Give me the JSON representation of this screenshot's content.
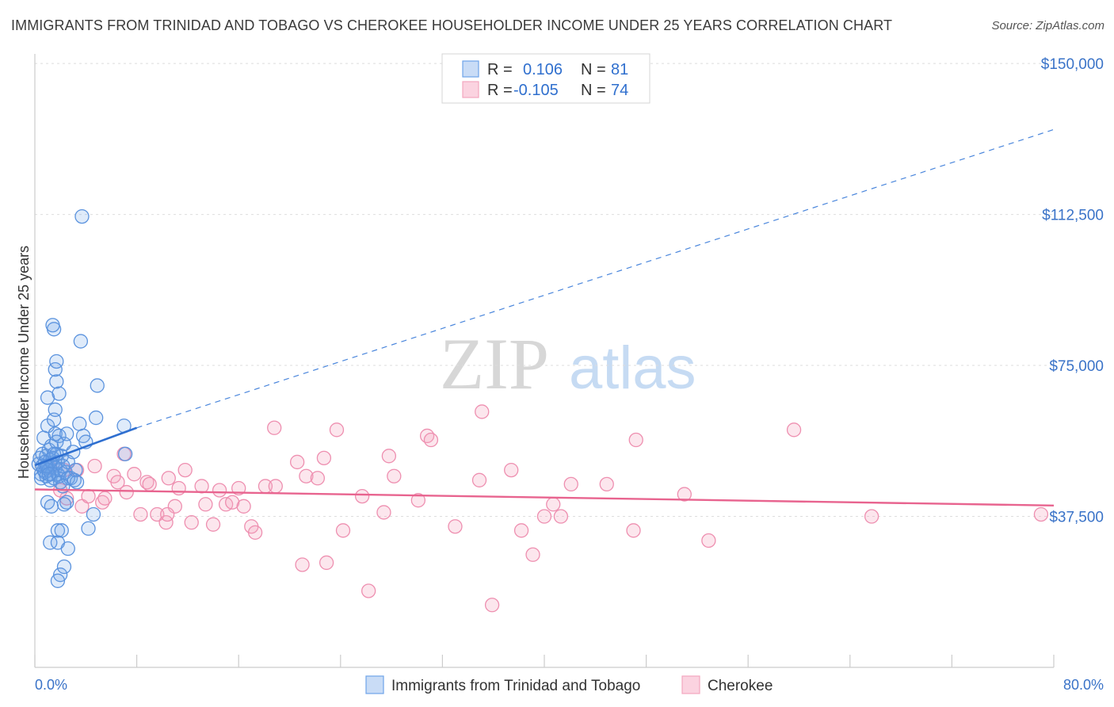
{
  "header": {
    "title": "IMMIGRANTS FROM TRINIDAD AND TOBAGO VS CHEROKEE HOUSEHOLDER INCOME UNDER 25 YEARS CORRELATION CHART",
    "source": "Source: ZipAtlas.com"
  },
  "watermark": {
    "zip": "ZIP",
    "atlas": "atlas"
  },
  "stats": [
    {
      "r_label": "R =",
      "r_value": "0.106",
      "n_label": "N =",
      "n_value": "81",
      "color": "#6fa3e8"
    },
    {
      "r_label": "R =",
      "r_value": "-0.105",
      "n_label": "N =",
      "n_value": "74",
      "color": "#f4a6bf"
    }
  ],
  "chart_data": {
    "type": "scatter",
    "title": "IMMIGRANTS FROM TRINIDAD AND TOBAGO VS CHEROKEE HOUSEHOLDER INCOME UNDER 25 YEARS CORRELATION CHART",
    "xlabel": "",
    "ylabel": "Householder Income Under 25 years",
    "xlim": [
      0,
      80
    ],
    "ylim": [
      0,
      157500
    ],
    "x_tick_labels": [
      "0.0%",
      "80.0%"
    ],
    "y_ticks": [
      37500,
      75000,
      112500,
      150000
    ],
    "y_tick_labels": [
      "$37,500",
      "$75,000",
      "$112,500",
      "$150,000"
    ],
    "grid": true,
    "legend": "bottom-center",
    "series": [
      {
        "name": "Immigrants from Trinidad and Tobago",
        "color": "#6fa3e8",
        "trend": {
          "x": [
            0,
            8
          ],
          "y": [
            50200,
            59500
          ],
          "dashed_to": [
            80,
            133600
          ]
        },
        "points": [
          [
            0.3,
            50500
          ],
          [
            0.4,
            52000
          ],
          [
            0.5,
            48000
          ],
          [
            0.5,
            47000
          ],
          [
            0.6,
            53000
          ],
          [
            0.6,
            50000
          ],
          [
            0.7,
            49000
          ],
          [
            0.7,
            57000
          ],
          [
            0.8,
            51000
          ],
          [
            0.8,
            48500
          ],
          [
            0.9,
            47500
          ],
          [
            0.9,
            52500
          ],
          [
            1.0,
            50000
          ],
          [
            1.0,
            60000
          ],
          [
            1.1,
            49000
          ],
          [
            1.1,
            54000
          ],
          [
            1.2,
            51500
          ],
          [
            1.2,
            46500
          ],
          [
            1.3,
            48000
          ],
          [
            1.3,
            55000
          ],
          [
            1.4,
            50500
          ],
          [
            1.4,
            52000
          ],
          [
            1.5,
            61500
          ],
          [
            1.5,
            47000
          ],
          [
            1.6,
            58000
          ],
          [
            1.6,
            49500
          ],
          [
            1.7,
            56000
          ],
          [
            1.7,
            53000
          ],
          [
            1.8,
            48000
          ],
          [
            1.8,
            51000
          ],
          [
            1.9,
            47500
          ],
          [
            1.9,
            57500
          ],
          [
            2.0,
            49000
          ],
          [
            2.0,
            46000
          ],
          [
            2.1,
            52500
          ],
          [
            2.2,
            50000
          ],
          [
            2.3,
            55500
          ],
          [
            2.4,
            48500
          ],
          [
            2.5,
            58000
          ],
          [
            2.6,
            51000
          ],
          [
            2.8,
            47000
          ],
          [
            3.0,
            53500
          ],
          [
            3.2,
            49000
          ],
          [
            3.5,
            60500
          ],
          [
            3.8,
            57500
          ],
          [
            4.0,
            56000
          ],
          [
            1.0,
            67000
          ],
          [
            1.5,
            84000
          ],
          [
            1.4,
            85000
          ],
          [
            1.6,
            64000
          ],
          [
            1.6,
            74000
          ],
          [
            1.7,
            71000
          ],
          [
            1.7,
            76000
          ],
          [
            1.9,
            68000
          ],
          [
            3.6,
            81000
          ],
          [
            4.9,
            70000
          ],
          [
            4.8,
            62000
          ],
          [
            7.0,
            60000
          ],
          [
            7.1,
            53000
          ],
          [
            3.7,
            112000
          ],
          [
            1.0,
            41000
          ],
          [
            1.3,
            40000
          ],
          [
            1.8,
            34000
          ],
          [
            1.2,
            31000
          ],
          [
            1.8,
            31000
          ],
          [
            2.0,
            23000
          ],
          [
            1.8,
            21500
          ],
          [
            2.1,
            34000
          ],
          [
            2.3,
            25000
          ],
          [
            2.6,
            29500
          ],
          [
            4.2,
            34500
          ],
          [
            4.6,
            38000
          ],
          [
            2.5,
            41000
          ],
          [
            2.3,
            40500
          ],
          [
            2.6,
            47000
          ],
          [
            3.1,
            46500
          ],
          [
            3.3,
            46000
          ],
          [
            0.9,
            50000
          ],
          [
            1.1,
            48000
          ],
          [
            2.2,
            45000
          ],
          [
            1.5,
            53000
          ]
        ]
      },
      {
        "name": "Cherokee",
        "color": "#f4a6bf",
        "trend": {
          "x": [
            0,
            80
          ],
          "y": [
            44200,
            40200
          ]
        },
        "points": [
          [
            1.2,
            49500
          ],
          [
            2.3,
            49000
          ],
          [
            3.3,
            49000
          ],
          [
            2.5,
            42000
          ],
          [
            3.7,
            40000
          ],
          [
            4.2,
            42500
          ],
          [
            5.3,
            41000
          ],
          [
            5.5,
            42000
          ],
          [
            6.2,
            47500
          ],
          [
            7.0,
            53000
          ],
          [
            7.2,
            43500
          ],
          [
            7.8,
            48000
          ],
          [
            8.3,
            38000
          ],
          [
            8.8,
            46000
          ],
          [
            9.0,
            45500
          ],
          [
            9.6,
            38000
          ],
          [
            10.3,
            36000
          ],
          [
            10.5,
            47000
          ],
          [
            11.0,
            40000
          ],
          [
            11.3,
            44500
          ],
          [
            11.8,
            49000
          ],
          [
            12.3,
            36000
          ],
          [
            13.1,
            45000
          ],
          [
            13.4,
            40500
          ],
          [
            14.0,
            35500
          ],
          [
            14.5,
            44000
          ],
          [
            15.0,
            40500
          ],
          [
            15.5,
            41000
          ],
          [
            16.0,
            44500
          ],
          [
            16.4,
            40000
          ],
          [
            17.0,
            35000
          ],
          [
            17.3,
            33500
          ],
          [
            18.1,
            45000
          ],
          [
            18.9,
            45000
          ],
          [
            18.8,
            59500
          ],
          [
            20.6,
            51000
          ],
          [
            21.0,
            25500
          ],
          [
            21.3,
            47500
          ],
          [
            22.2,
            47000
          ],
          [
            22.7,
            52000
          ],
          [
            22.9,
            26000
          ],
          [
            23.7,
            59000
          ],
          [
            24.2,
            34000
          ],
          [
            25.7,
            42500
          ],
          [
            26.2,
            19000
          ],
          [
            27.4,
            38500
          ],
          [
            27.8,
            52500
          ],
          [
            28.2,
            47500
          ],
          [
            30.1,
            41500
          ],
          [
            30.8,
            57500
          ],
          [
            31.1,
            56500
          ],
          [
            33.0,
            35000
          ],
          [
            34.9,
            46500
          ],
          [
            35.9,
            15500
          ],
          [
            35.1,
            63500
          ],
          [
            37.4,
            49000
          ],
          [
            38.2,
            34000
          ],
          [
            39.1,
            28000
          ],
          [
            40.0,
            37500
          ],
          [
            40.7,
            40500
          ],
          [
            41.3,
            37500
          ],
          [
            42.1,
            45500
          ],
          [
            44.9,
            45500
          ],
          [
            47.0,
            34000
          ],
          [
            47.2,
            56500
          ],
          [
            51.0,
            43000
          ],
          [
            52.9,
            31500
          ],
          [
            59.6,
            59000
          ],
          [
            65.7,
            37500
          ],
          [
            79.0,
            38000
          ],
          [
            10.4,
            38000
          ],
          [
            4.7,
            50000
          ],
          [
            2.0,
            44000
          ],
          [
            6.5,
            46000
          ]
        ]
      }
    ]
  }
}
